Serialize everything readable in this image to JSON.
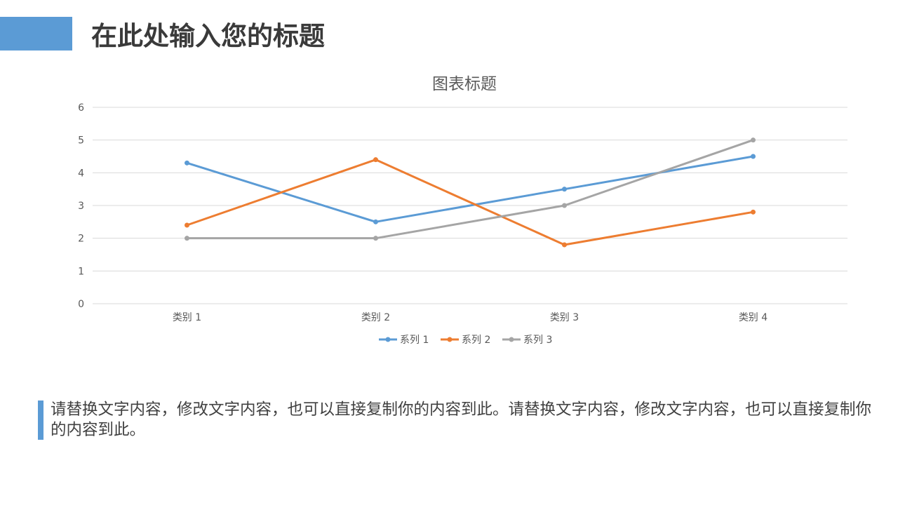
{
  "slide": {
    "title": "在此处输入您的标题",
    "body_text": "请替换文字内容，修改文字内容，也可以直接复制你的内容到此。请替换文字内容，修改文字内容，也可以直接复制你的内容到此。"
  },
  "colors": {
    "accent": "#5b9bd5",
    "series1": "#5b9bd5",
    "series2": "#ed7d31",
    "series3": "#a5a5a5",
    "gridline": "#d9d9d9",
    "text": "#595959"
  },
  "chart_data": {
    "type": "line",
    "title": "图表标题",
    "categories": [
      "类别 1",
      "类别 2",
      "类别 3",
      "类别 4"
    ],
    "series": [
      {
        "name": "系列 1",
        "values": [
          4.3,
          2.5,
          3.5,
          4.5
        ]
      },
      {
        "name": "系列 2",
        "values": [
          2.4,
          4.4,
          1.8,
          2.8
        ]
      },
      {
        "name": "系列 3",
        "values": [
          2,
          2,
          3,
          5
        ]
      }
    ],
    "xlabel": "",
    "ylabel": "",
    "ylim": [
      0,
      6
    ],
    "yticks": [
      0,
      1,
      2,
      3,
      4,
      5,
      6
    ],
    "grid": true,
    "legend": "bottom"
  }
}
